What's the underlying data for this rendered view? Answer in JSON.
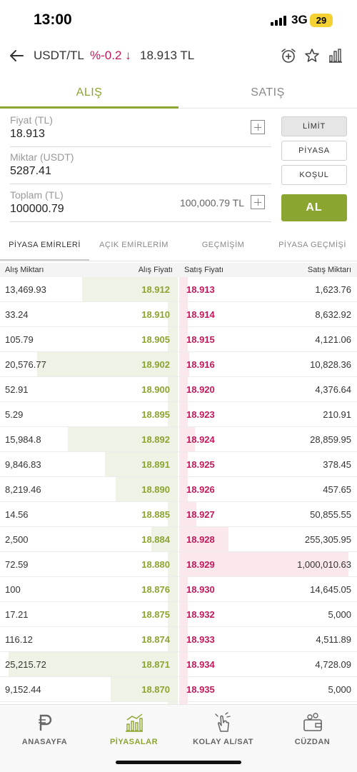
{
  "status_bar": {
    "time": "13:00",
    "network": "3G",
    "battery": "29"
  },
  "header": {
    "pair": "USDT/TL",
    "change": "%-0.2 ↓",
    "price": "18.913 TL"
  },
  "tabs": {
    "buy": "ALIŞ",
    "sell": "SATIŞ"
  },
  "form": {
    "price_label": "Fiyat (TL)",
    "price_value": "18.913",
    "amount_label": "Miktar (USDT)",
    "amount_value": "5287.41",
    "total_label": "Toplam (TL)",
    "total_value": "100000.79",
    "total_hint": "100,000.79 TL"
  },
  "order_types": {
    "limit": "LİMİT",
    "market": "PİYASA",
    "condition": "KOŞUL"
  },
  "submit": "AL",
  "market_tabs": [
    "PİYASA EMİRLERİ",
    "AÇIK EMİRLERİM",
    "GEÇMİŞİM",
    "PİYASA GEÇMİŞİ"
  ],
  "book_header": {
    "bid_qty": "Alış Miktarı",
    "bid_price": "Alış Fiyatı",
    "ask_price": "Satış Fiyatı",
    "ask_qty": "Satış Miktarı"
  },
  "order_book": [
    {
      "bid_qty": "13,469.93",
      "bid_price": "18.912",
      "ask_price": "18.913",
      "ask_qty": "1,623.76",
      "bid_depth": 0.54,
      "ask_depth": 0.05
    },
    {
      "bid_qty": "33.24",
      "bid_price": "18.910",
      "ask_price": "18.914",
      "ask_qty": "8,632.92",
      "bid_depth": 0.06,
      "ask_depth": 0.05
    },
    {
      "bid_qty": "105.79",
      "bid_price": "18.905",
      "ask_price": "18.915",
      "ask_qty": "4,121.06",
      "bid_depth": 0.06,
      "ask_depth": 0.05
    },
    {
      "bid_qty": "20,576.77",
      "bid_price": "18.902",
      "ask_price": "18.916",
      "ask_qty": "10,828.36",
      "bid_depth": 0.79,
      "ask_depth": 0.06
    },
    {
      "bid_qty": "52.91",
      "bid_price": "18.900",
      "ask_price": "18.920",
      "ask_qty": "4,376.64",
      "bid_depth": 0.06,
      "ask_depth": 0.05
    },
    {
      "bid_qty": "5.29",
      "bid_price": "18.895",
      "ask_price": "18.923",
      "ask_qty": "210.91",
      "bid_depth": 0.06,
      "ask_depth": 0.05
    },
    {
      "bid_qty": "15,984.8",
      "bid_price": "18.892",
      "ask_price": "18.924",
      "ask_qty": "28,859.95",
      "bid_depth": 0.62,
      "ask_depth": 0.09
    },
    {
      "bid_qty": "9,846.83",
      "bid_price": "18.891",
      "ask_price": "18.925",
      "ask_qty": "378.45",
      "bid_depth": 0.41,
      "ask_depth": 0.05
    },
    {
      "bid_qty": "8,219.46",
      "bid_price": "18.890",
      "ask_price": "18.926",
      "ask_qty": "457.65",
      "bid_depth": 0.35,
      "ask_depth": 0.05
    },
    {
      "bid_qty": "14.56",
      "bid_price": "18.885",
      "ask_price": "18.927",
      "ask_qty": "50,855.55",
      "bid_depth": 0.06,
      "ask_depth": 0.1
    },
    {
      "bid_qty": "2,500",
      "bid_price": "18.884",
      "ask_price": "18.928",
      "ask_qty": "255,305.95",
      "bid_depth": 0.15,
      "ask_depth": 0.28
    },
    {
      "bid_qty": "72.59",
      "bid_price": "18.880",
      "ask_price": "18.929",
      "ask_qty": "1,000,010.63",
      "bid_depth": 0.06,
      "ask_depth": 0.95
    },
    {
      "bid_qty": "100",
      "bid_price": "18.876",
      "ask_price": "18.930",
      "ask_qty": "14,645.05",
      "bid_depth": 0.06,
      "ask_depth": 0.05
    },
    {
      "bid_qty": "17.21",
      "bid_price": "18.875",
      "ask_price": "18.932",
      "ask_qty": "5,000",
      "bid_depth": 0.06,
      "ask_depth": 0.05
    },
    {
      "bid_qty": "116.12",
      "bid_price": "18.874",
      "ask_price": "18.933",
      "ask_qty": "4,511.89",
      "bid_depth": 0.06,
      "ask_depth": 0.05
    },
    {
      "bid_qty": "25,215.72",
      "bid_price": "18.871",
      "ask_price": "18.934",
      "ask_qty": "4,728.09",
      "bid_depth": 0.95,
      "ask_depth": 0.05
    },
    {
      "bid_qty": "9,152.44",
      "bid_price": "18.870",
      "ask_price": "18.935",
      "ask_qty": "5,000",
      "bid_depth": 0.38,
      "ask_depth": 0.05
    },
    {
      "bid_qty": "",
      "bid_price": "",
      "ask_price": "",
      "ask_qty": "",
      "bid_depth": 0.06,
      "ask_depth": 0.05
    }
  ],
  "bottom_nav": [
    {
      "label": "ANASAYFA",
      "icon": "home-p-icon"
    },
    {
      "label": "PİYASALAR",
      "icon": "markets-chart-icon"
    },
    {
      "label": "KOLAY AL/SAT",
      "icon": "easy-trade-hand-icon"
    },
    {
      "label": "CÜZDAN",
      "icon": "wallet-icon"
    }
  ],
  "colors": {
    "accent": "#8aa530",
    "sell": "#c2185b",
    "battery": "#f5d233"
  }
}
